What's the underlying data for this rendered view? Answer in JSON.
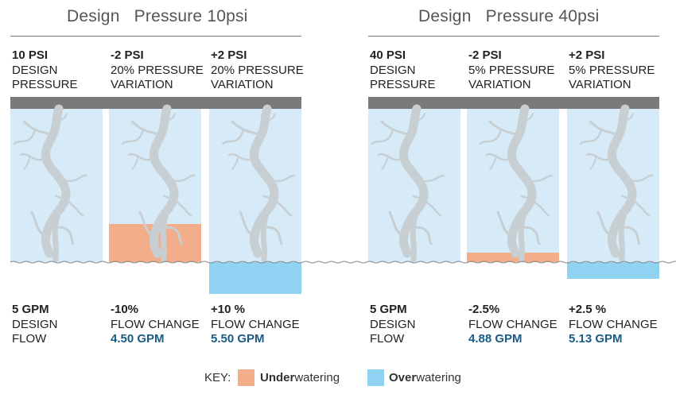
{
  "groups": [
    {
      "title": "Design   Pressure 10psi",
      "columns": [
        {
          "top_bold": "10 PSI",
          "top_lines": [
            "DESIGN",
            "PRESSURE"
          ],
          "bottom_bold": "5 GPM",
          "bottom_lines": [
            "DESIGN",
            "FLOW"
          ],
          "bottom_value": "",
          "state": "design",
          "level_fraction": 0
        },
        {
          "top_bold": "-2 PSI",
          "top_lines": [
            "20% PRESSURE",
            "VARIATION"
          ],
          "bottom_bold": "-10%",
          "bottom_lines": [
            "FLOW CHANGE"
          ],
          "bottom_value": "4.50 GPM",
          "state": "under",
          "level_fraction": -0.1
        },
        {
          "top_bold": "+2 PSI",
          "top_lines": [
            "20% PRESSURE",
            "VARIATION"
          ],
          "bottom_bold": "+10 %",
          "bottom_lines": [
            "FLOW CHANGE"
          ],
          "bottom_value": "5.50 GPM",
          "state": "over",
          "level_fraction": 0.1
        }
      ]
    },
    {
      "title": "Design   Pressure 40psi",
      "columns": [
        {
          "top_bold": "40 PSI",
          "top_lines": [
            "DESIGN",
            "PRESSURE"
          ],
          "bottom_bold": "5 GPM",
          "bottom_lines": [
            "DESIGN",
            "FLOW"
          ],
          "bottom_value": "",
          "state": "design",
          "level_fraction": 0
        },
        {
          "top_bold": "-2 PSI",
          "top_lines": [
            "5% PRESSURE",
            "VARIATION"
          ],
          "bottom_bold": "-2.5%",
          "bottom_lines": [
            "FLOW CHANGE"
          ],
          "bottom_value": "4.88 GPM",
          "state": "under",
          "level_fraction": -0.025
        },
        {
          "top_bold": "+2 PSI",
          "top_lines": [
            "5% PRESSURE",
            "VARIATION"
          ],
          "bottom_bold": "+2.5 %",
          "bottom_lines": [
            "FLOW CHANGE"
          ],
          "bottom_value": "5.13 GPM",
          "state": "over",
          "level_fraction": 0.025
        }
      ]
    }
  ],
  "key": {
    "label": "KEY:",
    "under_bold": "Under",
    "under_rest": "watering",
    "over_bold": "Over",
    "over_rest": "watering"
  },
  "colors": {
    "panel": "#d6eaf8",
    "underwatering": "#f2ae8a",
    "overwatering": "#8fd2f2",
    "root": "#c8cfd3",
    "cap_bar": "#7a7a7a",
    "value_text": "#1a5b86"
  }
}
